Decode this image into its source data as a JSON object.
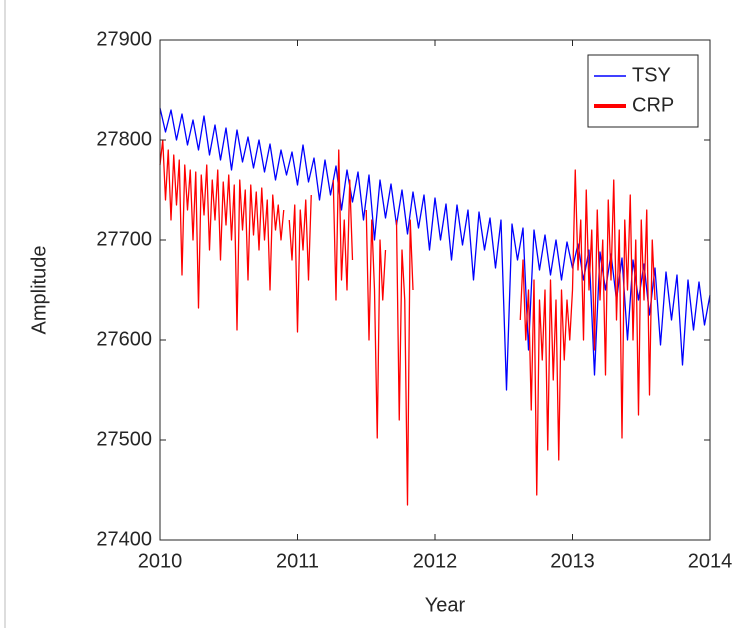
{
  "chart_data": {
    "type": "line",
    "xlabel": "Year",
    "ylabel": "Amplitude",
    "xlim": [
      2010,
      2014
    ],
    "xticks": [
      2010,
      2011,
      2012,
      2013,
      2014
    ],
    "ylim": [
      27400,
      27900
    ],
    "yticks": [
      27400,
      27500,
      27600,
      27700,
      27800,
      27900
    ],
    "legend": "northeast",
    "box": true,
    "series": [
      {
        "name": "TSY",
        "color": "#0000ff",
        "x": [
          2010,
          2010.04,
          2010.08,
          2010.12,
          2010.16,
          2010.2,
          2010.24,
          2010.28,
          2010.32,
          2010.36,
          2010.4,
          2010.44,
          2010.48,
          2010.52,
          2010.56,
          2010.6,
          2010.64,
          2010.68,
          2010.72,
          2010.76,
          2010.8,
          2010.84,
          2010.88,
          2010.92,
          2010.96,
          2011,
          2011.04,
          2011.08,
          2011.12,
          2011.16,
          2011.2,
          2011.24,
          2011.28,
          2011.32,
          2011.36,
          2011.4,
          2011.44,
          2011.48,
          2011.52,
          2011.56,
          2011.6,
          2011.64,
          2011.68,
          2011.72,
          2011.76,
          2011.8,
          2011.84,
          2011.88,
          2011.92,
          2011.96,
          2012,
          2012.04,
          2012.08,
          2012.12,
          2012.16,
          2012.2,
          2012.24,
          2012.28,
          2012.32,
          2012.36,
          2012.4,
          2012.44,
          2012.48,
          2012.52,
          2012.56,
          2012.6,
          2012.64,
          2012.68,
          2012.72,
          2012.76,
          2012.8,
          2012.84,
          2012.88,
          2012.92,
          2012.96,
          2013,
          2013.04,
          2013.08,
          2013.12,
          2013.16,
          2013.2,
          2013.24,
          2013.28,
          2013.32,
          2013.36,
          2013.4,
          2013.44,
          2013.48,
          2013.52,
          2013.56,
          2013.6,
          2013.64,
          2013.68,
          2013.72,
          2013.76,
          2013.8,
          2013.84,
          2013.88,
          2013.92,
          2013.96,
          2014
        ],
        "values": [
          27832,
          27808,
          27830,
          27800,
          27826,
          27795,
          27820,
          27790,
          27824,
          27785,
          27815,
          27780,
          27812,
          27770,
          27810,
          27778,
          27803,
          27772,
          27800,
          27768,
          27796,
          27760,
          27790,
          27765,
          27788,
          27755,
          27795,
          27758,
          27782,
          27740,
          27780,
          27745,
          27774,
          27730,
          27770,
          27738,
          27768,
          27720,
          27765,
          27700,
          27760,
          27722,
          27756,
          27715,
          27750,
          27706,
          27748,
          27712,
          27745,
          27690,
          27742,
          27700,
          27736,
          27680,
          27735,
          27695,
          27730,
          27660,
          27728,
          27690,
          27722,
          27672,
          27720,
          27550,
          27716,
          27680,
          27712,
          27590,
          27710,
          27670,
          27705,
          27665,
          27700,
          27660,
          27698,
          27672,
          27696,
          27660,
          27690,
          27565,
          27688,
          27650,
          27686,
          27640,
          27682,
          27600,
          27680,
          27640,
          27676,
          27625,
          27672,
          27595,
          27668,
          27620,
          27665,
          27575,
          27660,
          27610,
          27658,
          27615,
          27645
        ]
      },
      {
        "name": "CRP",
        "color": "#ff0000",
        "x": [
          2010,
          2010.02,
          2010.04,
          2010.06,
          2010.08,
          2010.1,
          2010.12,
          2010.14,
          2010.16,
          2010.18,
          2010.2,
          2010.22,
          2010.24,
          2010.26,
          2010.28,
          2010.3,
          2010.32,
          2010.34,
          2010.36,
          2010.38,
          2010.4,
          2010.42,
          2010.44,
          2010.46,
          2010.48,
          2010.5,
          2010.52,
          2010.54,
          2010.56,
          2010.58,
          2010.6,
          2010.62,
          2010.64,
          2010.66,
          2010.68,
          2010.7,
          2010.72,
          2010.74,
          2010.76,
          2010.78,
          2010.8,
          2010.82,
          2010.84,
          2010.86,
          2010.88,
          2010.9,
          2010.92,
          2010.94,
          2010.96,
          2010.98,
          2011,
          2011.02,
          2011.04,
          2011.06,
          2011.08,
          2011.1,
          2011.14,
          2011.26,
          2011.28,
          2011.3,
          2011.32,
          2011.34,
          2011.36,
          2011.38,
          2011.4,
          2011.44,
          2011.5,
          2011.52,
          2011.54,
          2011.56,
          2011.58,
          2011.6,
          2011.62,
          2011.64,
          2011.68,
          2011.72,
          2011.74,
          2011.76,
          2011.78,
          2011.8,
          2011.82,
          2011.84,
          2011.88,
          2012.62,
          2012.64,
          2012.66,
          2012.68,
          2012.7,
          2012.72,
          2012.74,
          2012.76,
          2012.78,
          2012.8,
          2012.82,
          2012.84,
          2012.86,
          2012.88,
          2012.9,
          2012.92,
          2012.94,
          2012.96,
          2012.98,
          2013,
          2013.02,
          2013.04,
          2013.06,
          2013.08,
          2013.1,
          2013.12,
          2013.14,
          2013.16,
          2013.18,
          2013.2,
          2013.22,
          2013.24,
          2013.26,
          2013.28,
          2013.3,
          2013.32,
          2013.34,
          2013.36,
          2013.38,
          2013.4,
          2013.42,
          2013.44,
          2013.46,
          2013.48,
          2013.5,
          2013.52,
          2013.54,
          2013.56,
          2013.58,
          2013.6
        ],
        "values": [
          27775,
          27800,
          27740,
          27790,
          27720,
          27785,
          27735,
          27780,
          27665,
          27775,
          27730,
          27770,
          27700,
          27768,
          27632,
          27765,
          27725,
          27775,
          27690,
          27760,
          27720,
          27770,
          27680,
          27758,
          27715,
          27765,
          27700,
          27755,
          27610,
          27760,
          27710,
          27750,
          27660,
          27755,
          27705,
          27748,
          27690,
          27752,
          27700,
          27740,
          27650,
          27745,
          27710,
          27735,
          27700,
          27730,
          null,
          27720,
          27680,
          27735,
          27608,
          27730,
          27690,
          27740,
          27660,
          27745,
          null,
          27760,
          27640,
          27790,
          27660,
          27720,
          27650,
          27760,
          27680,
          null,
          27730,
          27600,
          27720,
          27650,
          27502,
          27700,
          27640,
          27690,
          null,
          27720,
          27520,
          27690,
          27640,
          27435,
          27720,
          27650,
          null,
          27620,
          27680,
          27600,
          27650,
          27530,
          27660,
          27445,
          27640,
          27580,
          27650,
          27490,
          27660,
          27560,
          27640,
          27480,
          27650,
          27580,
          27640,
          27600,
          27650,
          27770,
          27670,
          27720,
          27600,
          27750,
          27650,
          27710,
          27590,
          27730,
          27640,
          27700,
          27565,
          27740,
          27660,
          27760,
          27620,
          27710,
          27502,
          27720,
          27650,
          27745,
          27600,
          27700,
          27525,
          27720,
          27640,
          27730,
          27545,
          27700,
          27640
        ]
      }
    ]
  }
}
